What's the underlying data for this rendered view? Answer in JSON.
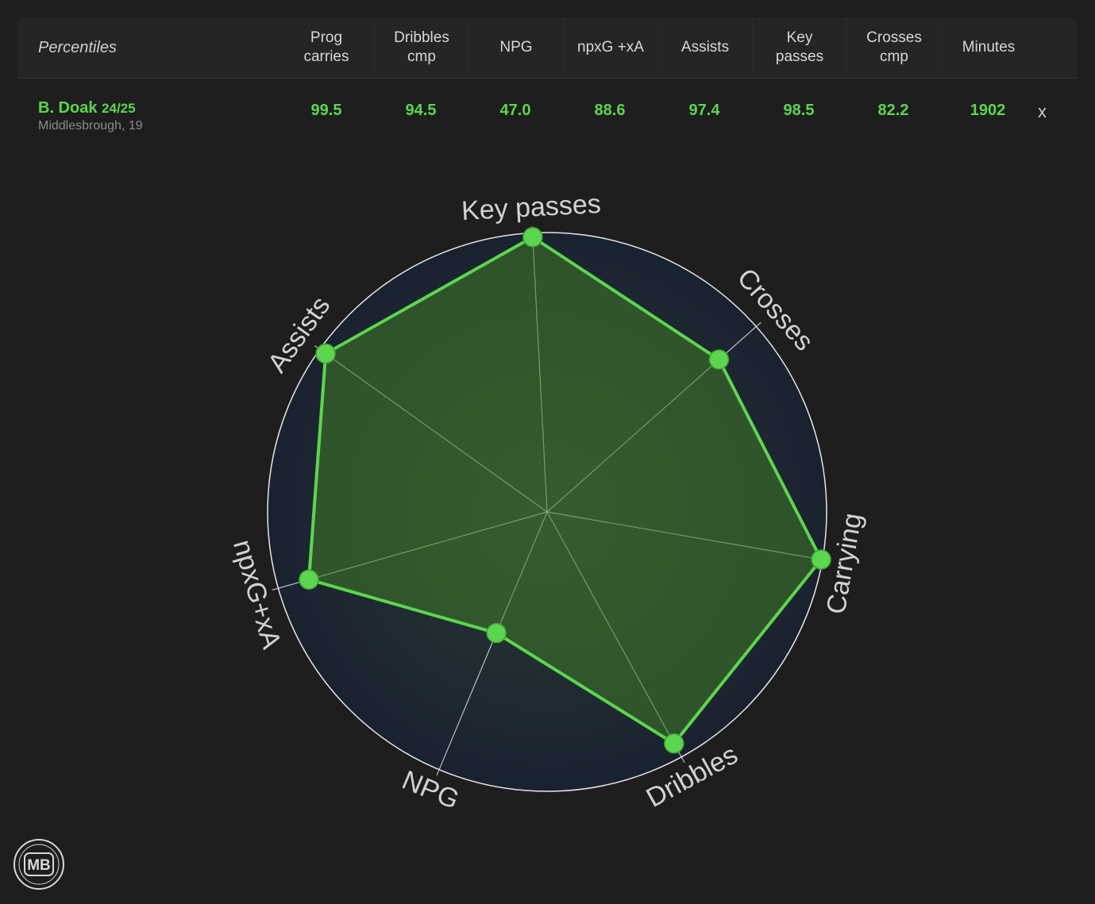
{
  "table": {
    "row_label": "Percentiles",
    "columns": [
      {
        "key": "prog_carries",
        "line1": "Prog",
        "line2": "carries"
      },
      {
        "key": "dribbles_cmp",
        "line1": "Dribbles",
        "line2": "cmp"
      },
      {
        "key": "npg",
        "line1": "NPG",
        "line2": ""
      },
      {
        "key": "npxg_xa",
        "line1": "npxG +xA",
        "line2": ""
      },
      {
        "key": "assists",
        "line1": "Assists",
        "line2": ""
      },
      {
        "key": "key_passes",
        "line1": "Key",
        "line2": "passes"
      },
      {
        "key": "crosses_cmp",
        "line1": "Crosses",
        "line2": "cmp"
      },
      {
        "key": "minutes",
        "line1": "Minutes",
        "line2": ""
      }
    ],
    "player": {
      "name": "B. Doak",
      "season": "24/25",
      "team_age": "Middlesbrough, 19",
      "values": [
        "99.5",
        "94.5",
        "47.0",
        "88.6",
        "97.4",
        "98.5",
        "82.2",
        "1902"
      ],
      "remove_label": "x"
    }
  },
  "chart_data": {
    "type": "radar",
    "axes": [
      "Key passes",
      "Crosses",
      "Carrying",
      "Dribbles",
      "NPG",
      "npxG+xA",
      "Assists"
    ],
    "series": [
      {
        "values": [
          98.5,
          82.2,
          99.5,
          94.5,
          47.0,
          88.6,
          97.4
        ]
      }
    ],
    "range": [
      0,
      100
    ],
    "colors": {
      "line": "#5cd64e",
      "fill": "#3f7a26",
      "grid": "#e6e6e6",
      "background": "#1e2733"
    }
  },
  "logo": {
    "text": "MB"
  }
}
